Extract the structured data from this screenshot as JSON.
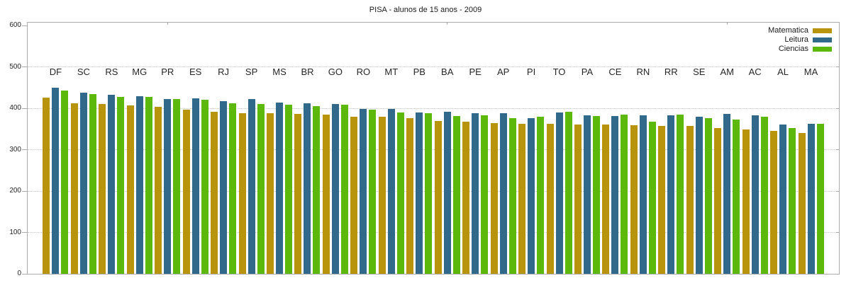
{
  "chart_data": {
    "type": "bar",
    "title": "PISA - alunos de 15 anos - 2009",
    "categories": [
      "DF",
      "SC",
      "RS",
      "MG",
      "PR",
      "ES",
      "RJ",
      "SP",
      "MS",
      "BR",
      "GO",
      "RO",
      "MT",
      "PB",
      "BA",
      "PE",
      "AP",
      "PI",
      "TO",
      "PA",
      "CE",
      "RN",
      "RR",
      "SE",
      "AM",
      "AC",
      "AL",
      "MA"
    ],
    "series": [
      {
        "name": "Matematica",
        "color": "#b8940c",
        "values": [
          425,
          412,
          410,
          407,
          403,
          397,
          392,
          389,
          388,
          386,
          384,
          379,
          379,
          376,
          369,
          367,
          364,
          363,
          362,
          361,
          360,
          359,
          358,
          358,
          352,
          349,
          345,
          340
        ]
      },
      {
        "name": "Leitura",
        "color": "#31698a",
        "values": [
          449,
          437,
          432,
          429,
          422,
          424,
          418,
          423,
          414,
          412,
          411,
          398,
          398,
          390,
          391,
          388,
          389,
          376,
          390,
          383,
          381,
          383,
          383,
          379,
          387,
          383,
          361,
          362
        ]
      },
      {
        "name": "Ciencias",
        "color": "#5cb80a",
        "values": [
          443,
          434,
          428,
          427,
          423,
          421,
          412,
          411,
          409,
          405,
          408,
          397,
          390,
          389,
          382,
          383,
          377,
          379,
          392,
          381,
          384,
          367,
          385,
          377,
          373,
          380,
          353,
          362
        ]
      }
    ],
    "xlabel": "",
    "ylabel": "",
    "ylim": [
      0,
      600
    ],
    "yticks": [
      0,
      100,
      200,
      300,
      400,
      500,
      600
    ],
    "grid": "horizontal-dotted",
    "legend_position": "top-right-inside",
    "axis_color": "#ababab",
    "grid_color": "#c6c6c6",
    "text_color": "#262626"
  }
}
